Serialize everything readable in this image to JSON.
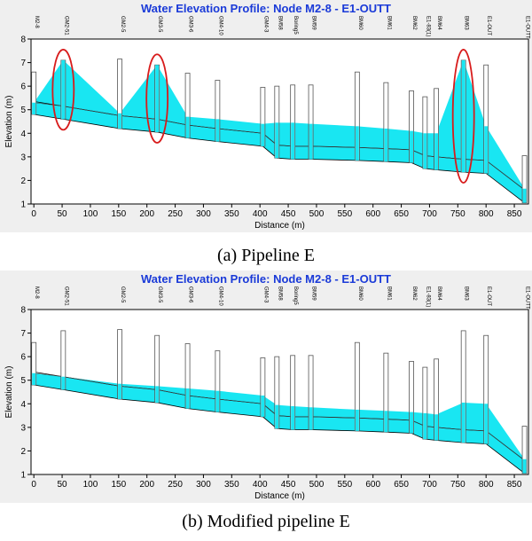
{
  "chart_data": [
    {
      "type": "area",
      "title": "Water Elevation Profile:  Node M2-8 - E1-OUTT",
      "xlabel": "Distance (m)",
      "ylabel": "Elevation (m)",
      "xlim": [
        -5,
        875
      ],
      "ylim": [
        1,
        8
      ],
      "xticks": [
        0,
        50,
        100,
        150,
        200,
        250,
        300,
        350,
        400,
        450,
        500,
        550,
        600,
        650,
        700,
        750,
        800,
        850
      ],
      "yticks": [
        1,
        2,
        3,
        4,
        5,
        6,
        7,
        8
      ],
      "caption": "(a)  Pipeline  E",
      "nodes": [
        {
          "label": "M2-8",
          "x": 0,
          "rim": 6.6,
          "bottom": 4.8,
          "water": 5.3
        },
        {
          "label": "GM2-51",
          "x": 52,
          "rim": 7.1,
          "bottom": 4.6,
          "water": 7.1
        },
        {
          "label": "GM2-5",
          "x": 152,
          "rim": 7.15,
          "bottom": 4.2,
          "water": 4.85
        },
        {
          "label": "GM3-5",
          "x": 218,
          "rim": 6.9,
          "bottom": 4.05,
          "water": 6.9
        },
        {
          "label": "GM3-6",
          "x": 272,
          "rim": 6.55,
          "bottom": 3.8,
          "water": 4.7
        },
        {
          "label": "GM4-10",
          "x": 325,
          "rim": 6.25,
          "bottom": 3.65,
          "water": 4.6
        },
        {
          "label": "GM4-3",
          "x": 405,
          "rim": 5.95,
          "bottom": 3.45,
          "water": 4.4
        },
        {
          "label": "BM58",
          "x": 430,
          "rim": 6.0,
          "bottom": 2.95,
          "water": 4.45
        },
        {
          "label": "Boring5",
          "x": 458,
          "rim": 6.05,
          "bottom": 2.9,
          "water": 4.45
        },
        {
          "label": "BM59",
          "x": 490,
          "rim": 6.05,
          "bottom": 2.9,
          "water": 4.4
        },
        {
          "label": "BM60",
          "x": 572,
          "rim": 6.6,
          "bottom": 2.85,
          "water": 4.3
        },
        {
          "label": "BM61",
          "x": 623,
          "rim": 6.15,
          "bottom": 2.8,
          "water": 4.2
        },
        {
          "label": "BM62",
          "x": 668,
          "rim": 5.8,
          "bottom": 2.75,
          "water": 4.1
        },
        {
          "label": "E1-83(1)",
          "x": 692,
          "rim": 5.55,
          "bottom": 2.5,
          "water": 4.0
        },
        {
          "label": "BM64",
          "x": 712,
          "rim": 5.9,
          "bottom": 2.45,
          "water": 4.0
        },
        {
          "label": "BM63",
          "x": 760,
          "rim": 7.1,
          "bottom": 2.35,
          "water": 7.1
        },
        {
          "label": "E1-OUT",
          "x": 800,
          "rim": 6.9,
          "bottom": 2.3,
          "water": 4.3
        },
        {
          "label": "E1-OUTT",
          "x": 868,
          "rim": 3.05,
          "bottom": 1.05,
          "water": 1.65
        }
      ],
      "highlighted_nodes": [
        "GM2-51",
        "GM3-5",
        "BM63"
      ],
      "colors": {
        "water": "#19e6f2",
        "title": "#1a3ad8",
        "highlight": "#d81c1c",
        "plot_bg": "#ffffff",
        "frame_bg": "#efefef"
      }
    },
    {
      "type": "area",
      "title": "Water Elevation Profile:  Node M2-8 - E1-OUTT",
      "xlabel": "Distance (m)",
      "ylabel": "Elevation (m)",
      "xlim": [
        -5,
        875
      ],
      "ylim": [
        1,
        8
      ],
      "xticks": [
        0,
        50,
        100,
        150,
        200,
        250,
        300,
        350,
        400,
        450,
        500,
        550,
        600,
        650,
        700,
        750,
        800,
        850
      ],
      "yticks": [
        1,
        2,
        3,
        4,
        5,
        6,
        7,
        8
      ],
      "caption": "(b)  Modified  pipeline  E",
      "nodes": [
        {
          "label": "M2-8",
          "x": 0,
          "rim": 6.6,
          "bottom": 4.8,
          "water": 5.3
        },
        {
          "label": "GM2-51",
          "x": 52,
          "rim": 7.1,
          "bottom": 4.6,
          "water": 5.15
        },
        {
          "label": "GM2-5",
          "x": 152,
          "rim": 7.15,
          "bottom": 4.2,
          "water": 4.85
        },
        {
          "label": "GM3-5",
          "x": 218,
          "rim": 6.9,
          "bottom": 4.05,
          "water": 4.75
        },
        {
          "label": "GM3-6",
          "x": 272,
          "rim": 6.55,
          "bottom": 3.8,
          "water": 4.65
        },
        {
          "label": "GM4-10",
          "x": 325,
          "rim": 6.25,
          "bottom": 3.65,
          "water": 4.55
        },
        {
          "label": "GM4-3",
          "x": 405,
          "rim": 5.95,
          "bottom": 3.45,
          "water": 4.35
        },
        {
          "label": "BM58",
          "x": 430,
          "rim": 6.0,
          "bottom": 2.95,
          "water": 3.95
        },
        {
          "label": "Boring5",
          "x": 458,
          "rim": 6.05,
          "bottom": 2.9,
          "water": 3.9
        },
        {
          "label": "BM59",
          "x": 490,
          "rim": 6.05,
          "bottom": 2.9,
          "water": 3.85
        },
        {
          "label": "BM60",
          "x": 572,
          "rim": 6.6,
          "bottom": 2.85,
          "water": 3.75
        },
        {
          "label": "BM61",
          "x": 623,
          "rim": 6.15,
          "bottom": 2.8,
          "water": 3.7
        },
        {
          "label": "BM62",
          "x": 668,
          "rim": 5.8,
          "bottom": 2.75,
          "water": 3.65
        },
        {
          "label": "E1-83(1)",
          "x": 692,
          "rim": 5.55,
          "bottom": 2.5,
          "water": 3.6
        },
        {
          "label": "BM64",
          "x": 712,
          "rim": 5.9,
          "bottom": 2.45,
          "water": 3.55
        },
        {
          "label": "BM63",
          "x": 760,
          "rim": 7.1,
          "bottom": 2.35,
          "water": 4.05
        },
        {
          "label": "E1-OUT",
          "x": 800,
          "rim": 6.9,
          "bottom": 2.3,
          "water": 4.0
        },
        {
          "label": "E1-OUTT",
          "x": 868,
          "rim": 3.05,
          "bottom": 1.05,
          "water": 1.65
        }
      ],
      "highlighted_nodes": [],
      "colors": {
        "water": "#19e6f2",
        "title": "#1a3ad8",
        "highlight": "#d81c1c",
        "plot_bg": "#ffffff",
        "frame_bg": "#efefef"
      }
    }
  ]
}
